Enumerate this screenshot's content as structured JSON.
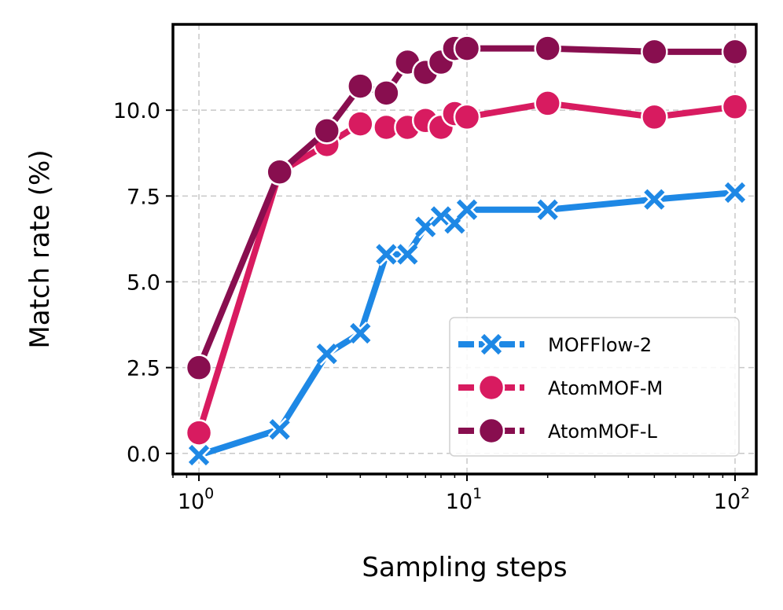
{
  "chart_data": {
    "type": "line",
    "xlabel": "Sampling steps",
    "ylabel": "Match rate (%)",
    "xscale": "log",
    "xlim": [
      0.8,
      120
    ],
    "ylim": [
      -0.6,
      12.5
    ],
    "xticks": [
      {
        "value": 1,
        "base": "10",
        "exp": "0"
      },
      {
        "value": 10,
        "base": "10",
        "exp": "1"
      },
      {
        "value": 100,
        "base": "10",
        "exp": "2"
      }
    ],
    "yticks": [
      {
        "value": 0,
        "label": "0.0"
      },
      {
        "value": 2.5,
        "label": "2.5"
      },
      {
        "value": 5,
        "label": "5.0"
      },
      {
        "value": 7.5,
        "label": "7.5"
      },
      {
        "value": 10,
        "label": "10.0"
      }
    ],
    "grid": true,
    "legend_position": "lower-right",
    "series": [
      {
        "name": "MOFFlow-2",
        "color": "#1E88E5",
        "marker": "x",
        "x": [
          1,
          2,
          3,
          4,
          5,
          6,
          7,
          8,
          9,
          10,
          20,
          50,
          100
        ],
        "y": [
          -0.05,
          0.7,
          2.9,
          3.5,
          5.8,
          5.8,
          6.6,
          6.9,
          6.7,
          7.1,
          7.1,
          7.4,
          7.6
        ]
      },
      {
        "name": "AtomMOF-M",
        "color": "#D81B60",
        "marker": "o",
        "x": [
          1,
          2,
          3,
          4,
          5,
          6,
          7,
          8,
          9,
          10,
          20,
          50,
          100
        ],
        "y": [
          0.6,
          8.2,
          9.0,
          9.6,
          9.5,
          9.5,
          9.7,
          9.5,
          9.9,
          9.8,
          10.2,
          9.8,
          10.1
        ]
      },
      {
        "name": "AtomMOF-L",
        "color": "#880E4F",
        "marker": "o",
        "x": [
          1,
          2,
          3,
          4,
          5,
          6,
          7,
          8,
          9,
          10,
          20,
          50,
          100
        ],
        "y": [
          2.5,
          8.2,
          9.4,
          10.7,
          10.5,
          11.4,
          11.1,
          11.4,
          11.8,
          11.8,
          11.8,
          11.7,
          11.7
        ]
      }
    ]
  }
}
